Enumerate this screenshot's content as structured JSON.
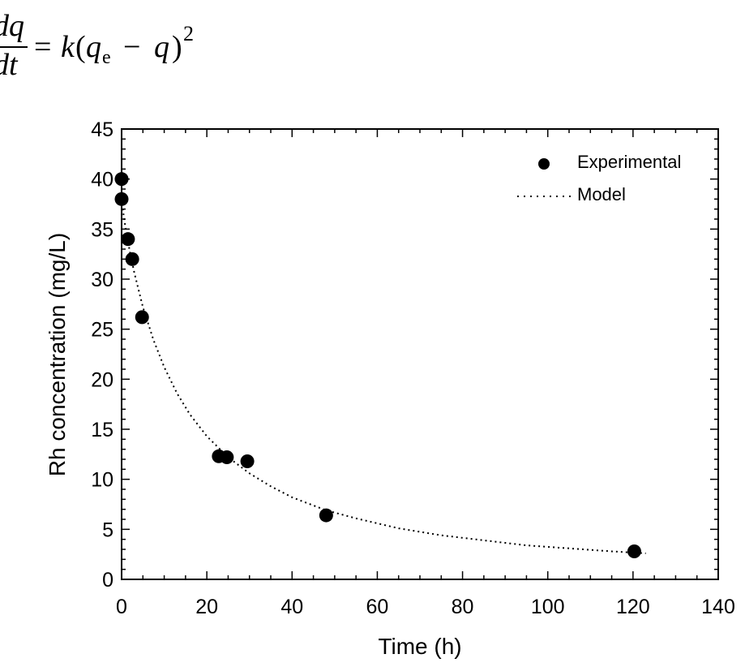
{
  "equation": {
    "numerator": "dq",
    "denominator": "dt",
    "rhs_k": "k",
    "rhs_q": "q",
    "rhs_sub": "e",
    "rhs_minus": "−",
    "rhs_q2": "q",
    "rhs_exp": "2",
    "eq_sign": "="
  },
  "chart_data": {
    "type": "scatter",
    "title": "",
    "xlabel": "Time (h)",
    "ylabel": "Rh concentration (mg/L)",
    "xlim": [
      0,
      140
    ],
    "ylim": [
      0,
      45
    ],
    "xticks": [
      0,
      20,
      40,
      60,
      80,
      100,
      120,
      140
    ],
    "yticks": [
      0,
      5,
      10,
      15,
      20,
      25,
      30,
      35,
      40,
      45
    ],
    "legend_position": "top-right",
    "series": [
      {
        "name": "Experimental",
        "style": "markers",
        "x": [
          0,
          0,
          1.5,
          2.5,
          4.8,
          22.8,
          24.7,
          29.5,
          48,
          120.3
        ],
        "y": [
          40,
          38,
          34,
          32,
          26.2,
          12.3,
          12.2,
          11.8,
          6.4,
          2.8
        ]
      },
      {
        "name": "Model",
        "style": "dotted-line",
        "x": [
          0,
          0.5,
          1,
          2,
          3,
          5,
          7.5,
          10,
          13,
          16,
          20,
          25,
          30,
          35,
          40,
          48,
          55,
          65,
          75,
          85,
          95,
          105,
          115,
          123
        ],
        "y": [
          38,
          36.3,
          34.9,
          32.6,
          30.6,
          27.2,
          23.9,
          21.2,
          18.6,
          16.5,
          14.3,
          12.2,
          10.6,
          9.3,
          8.2,
          6.9,
          6.1,
          5.1,
          4.4,
          3.9,
          3.4,
          3.1,
          2.8,
          2.6
        ]
      }
    ]
  }
}
